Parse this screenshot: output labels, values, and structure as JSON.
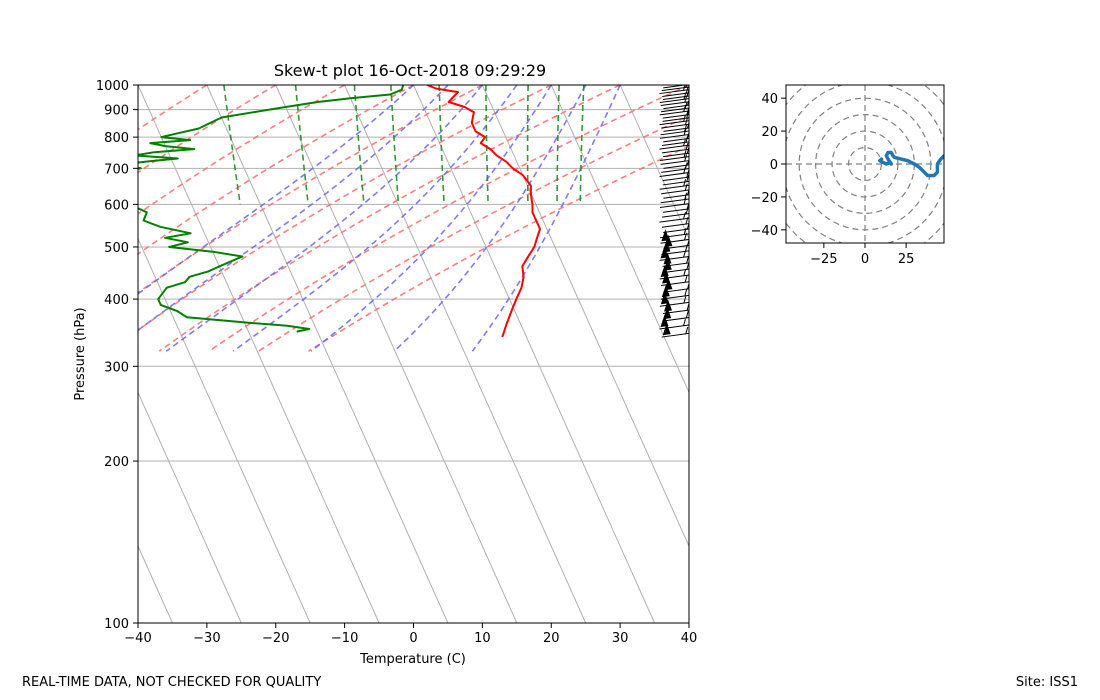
{
  "chart_data": [
    {
      "type": "line",
      "title": "Skew-t plot 16-Oct-2018 09:29:29",
      "xlabel": "Temperature (C)",
      "ylabel": "Pressure (hPa)",
      "xlim": [
        -40,
        40
      ],
      "ylim": [
        1000,
        100
      ],
      "x_ticks": [
        -40,
        -30,
        -20,
        -10,
        0,
        10,
        20,
        30,
        40
      ],
      "x_tick_labels": [
        "−40",
        "−30",
        "−20",
        "−10",
        "0",
        "10",
        "20",
        "30",
        "40"
      ],
      "y_ticks": [
        1000,
        900,
        800,
        700,
        600,
        500,
        400,
        300,
        200,
        100
      ],
      "y_tick_labels": [
        "1000",
        "900",
        "800",
        "700",
        "600",
        "500",
        "400",
        "300",
        "200",
        "100"
      ],
      "grid": true,
      "skew": 35,
      "series": [
        {
          "name": "Temperature",
          "color": "#ff0000",
          "points": [
            [
              1000,
              2
            ],
            [
              985,
              3
            ],
            [
              970,
              6
            ],
            [
              950,
              5
            ],
            [
              930,
              4
            ],
            [
              910,
              6
            ],
            [
              890,
              7
            ],
            [
              870,
              6.5
            ],
            [
              850,
              6
            ],
            [
              820,
              6
            ],
            [
              800,
              7
            ],
            [
              780,
              6
            ],
            [
              760,
              7
            ],
            [
              740,
              7.5
            ],
            [
              720,
              8.5
            ],
            [
              700,
              9
            ],
            [
              680,
              10
            ],
            [
              650,
              10.5
            ],
            [
              630,
              10
            ],
            [
              600,
              9.5
            ],
            [
              580,
              9
            ],
            [
              560,
              9
            ],
            [
              540,
              9
            ],
            [
              520,
              8
            ],
            [
              500,
              7
            ],
            [
              480,
              5.5
            ],
            [
              460,
              4
            ],
            [
              440,
              3.5
            ],
            [
              420,
              2.5
            ],
            [
              400,
              1
            ],
            [
              380,
              -0.5
            ],
            [
              360,
              -2
            ],
            [
              340,
              -3.5
            ]
          ]
        },
        {
          "name": "Dewpoint",
          "color": "#008000",
          "points": [
            [
              1000,
              -1.5
            ],
            [
              980,
              -2
            ],
            [
              960,
              -4
            ],
            [
              945,
              -10
            ],
            [
              930,
              -15
            ],
            [
              910,
              -20
            ],
            [
              890,
              -25
            ],
            [
              870,
              -30
            ],
            [
              850,
              -32
            ],
            [
              830,
              -34
            ],
            [
              810,
              -38
            ],
            [
              800,
              -40
            ],
            [
              790,
              -36
            ],
            [
              780,
              -42
            ],
            [
              770,
              -40
            ],
            [
              760,
              -36
            ],
            [
              750,
              -42
            ],
            [
              740,
              -45
            ],
            [
              730,
              -39
            ],
            [
              720,
              -44
            ],
            [
              710,
              -48
            ],
            [
              700,
              -45
            ],
            [
              690,
              -48
            ],
            [
              670,
              -49
            ],
            [
              660,
              -50
            ],
            [
              640,
              -48
            ],
            [
              620,
              -50
            ],
            [
              600,
              -49
            ],
            [
              580,
              -47
            ],
            [
              560,
              -48
            ],
            [
              545,
              -46
            ],
            [
              530,
              -42
            ],
            [
              520,
              -46
            ],
            [
              510,
              -43
            ],
            [
              500,
              -46
            ],
            [
              490,
              -40
            ],
            [
              480,
              -36
            ],
            [
              470,
              -38
            ],
            [
              460,
              -40
            ],
            [
              450,
              -42
            ],
            [
              440,
              -45
            ],
            [
              430,
              -46
            ],
            [
              420,
              -49
            ],
            [
              410,
              -50
            ],
            [
              400,
              -51
            ],
            [
              390,
              -51
            ],
            [
              380,
              -49
            ],
            [
              370,
              -48
            ],
            [
              362,
              -40
            ],
            [
              357,
              -34
            ],
            [
              352,
              -31
            ],
            [
              348,
              -33
            ]
          ]
        }
      ],
      "dry_adiabats_theta_C": [
        -30,
        -20,
        -10,
        0,
        10,
        20,
        30,
        40,
        50,
        60
      ],
      "moist_adiabats_theta_C": [
        0,
        5,
        10,
        15,
        20,
        25,
        30
      ],
      "mixing_ratio_lines_gkg": [
        0.4,
        1,
        2,
        3,
        5,
        8,
        12,
        16,
        20
      ],
      "wind_barbs_column_x_C": 36
    },
    {
      "type": "line",
      "title": "Hodograph",
      "xlim": [
        -48,
        48
      ],
      "ylim": [
        -48,
        48
      ],
      "x_ticks": [
        -25,
        0,
        25
      ],
      "x_tick_labels": [
        "−25",
        "0",
        "25"
      ],
      "y_ticks": [
        40,
        20,
        0,
        -20,
        -40
      ],
      "y_tick_labels": [
        "40",
        "20",
        "0",
        "−20",
        "−40"
      ],
      "rings": [
        10,
        20,
        30,
        40,
        50,
        60
      ],
      "series": [
        {
          "name": "Wind",
          "color": "#1f77b4",
          "points": [
            [
              10,
              3
            ],
            [
              9,
              2
            ],
            [
              11,
              1
            ],
            [
              13,
              0
            ],
            [
              15,
              1
            ],
            [
              16,
              0
            ],
            [
              14,
              3
            ],
            [
              13,
              5
            ],
            [
              14,
              7
            ],
            [
              16,
              7
            ],
            [
              17,
              5
            ],
            [
              18,
              4
            ],
            [
              22,
              3
            ],
            [
              26,
              2
            ],
            [
              28,
              1
            ],
            [
              30,
              0
            ],
            [
              33,
              -2
            ],
            [
              36,
              -5
            ],
            [
              38,
              -7
            ],
            [
              42,
              -7
            ],
            [
              44,
              -5
            ],
            [
              44,
              0
            ],
            [
              46,
              3
            ],
            [
              48,
              5
            ]
          ]
        }
      ]
    }
  ],
  "footer": {
    "disclaimer": "REAL-TIME DATA, NOT CHECKED FOR QUALITY",
    "site": "Site: ISS1"
  },
  "colors": {
    "temperature": "#ff0000",
    "dewpoint": "#008000",
    "dry_adiabat": "#ff6a6a",
    "moist_adiabat": "#6666ee",
    "mixing_ratio": "#228b22",
    "hodograph": "#1f77b4"
  }
}
